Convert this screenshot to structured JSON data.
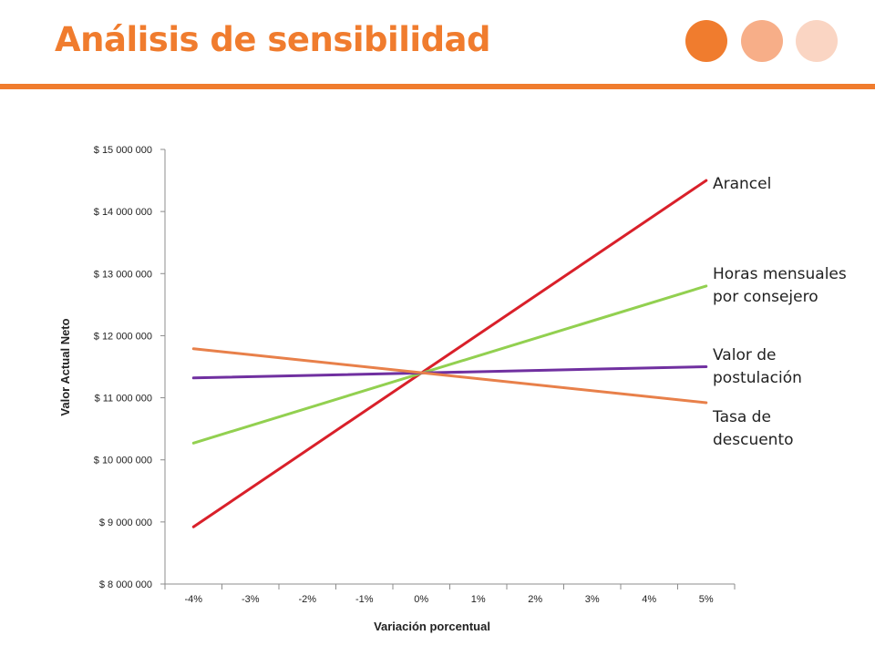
{
  "slide": {
    "title": "Análisis de sensibilidad",
    "accent_color": "#f07c2e",
    "decor_dots": [
      "#f07c2e",
      "#f7ae88",
      "#fad5c3"
    ]
  },
  "chart_data": {
    "type": "line",
    "title": "",
    "xlabel": "Variación porcentual",
    "ylabel": "Valor Actual Neto",
    "categories": [
      "-4%",
      "-3%",
      "-2%",
      "-1%",
      "0%",
      "1%",
      "2%",
      "3%",
      "4%",
      "5%"
    ],
    "x_numeric": [
      -4,
      -3,
      -2,
      -1,
      0,
      1,
      2,
      3,
      4,
      5
    ],
    "ylim": [
      8000000,
      15000000
    ],
    "yticks": [
      8000000,
      9000000,
      10000000,
      11000000,
      12000000,
      13000000,
      14000000,
      15000000
    ],
    "ytick_labels": [
      "$ 8 000 000",
      "$ 9 000 000",
      "$ 10 000 000",
      "$ 11 000 000",
      "$ 12 000 000",
      "$ 13 000 000",
      "$ 14 000 000",
      "$ 15 000 000"
    ],
    "grid": false,
    "legend": "inline labels at right of lines",
    "series": [
      {
        "name": "Arancel",
        "color": "#d9202a",
        "x": [
          -4,
          5
        ],
        "values": [
          8920000,
          14500000
        ]
      },
      {
        "name": "Horas mensuales\npor consejero",
        "color": "#92d050",
        "x": [
          -4,
          5
        ],
        "values": [
          10270000,
          12800000
        ]
      },
      {
        "name": "Valor de\npostulación",
        "color": "#7030a0",
        "x": [
          -4,
          5
        ],
        "values": [
          11320000,
          11500000
        ]
      },
      {
        "name": "Tasa de\ndescuento",
        "color": "#e8804a",
        "x": [
          -4,
          5
        ],
        "values": [
          11790000,
          10920000
        ]
      }
    ]
  }
}
